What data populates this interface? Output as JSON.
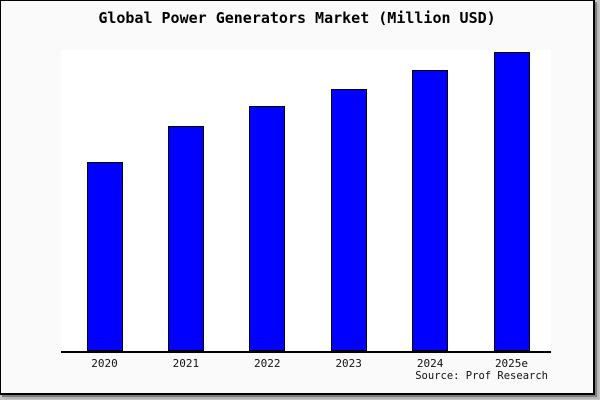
{
  "chart_data": {
    "type": "bar",
    "title": "Global Power Generators Market (Million USD)",
    "categories": [
      "2020",
      "2021",
      "2022",
      "2023",
      "2024",
      "2025e"
    ],
    "values": [
      63.1,
      75.1,
      81.8,
      87.6,
      93.8,
      100.0
    ],
    "values_note": "no y-axis or data labels are shown in the figure; values are relative bar heights normalized to 2025e = 100",
    "xlabel": "",
    "ylabel": "",
    "grid": false,
    "legend": null,
    "y_axis_visible": false,
    "x_axis_baseline": true,
    "bar_color": "#0000ff",
    "bar_border_color": "#000000",
    "plot_background": "#ffffff",
    "figure_background": "#fafafa",
    "frame_border_color": "#000000"
  },
  "source": {
    "label": "Source: Prof Research"
  }
}
